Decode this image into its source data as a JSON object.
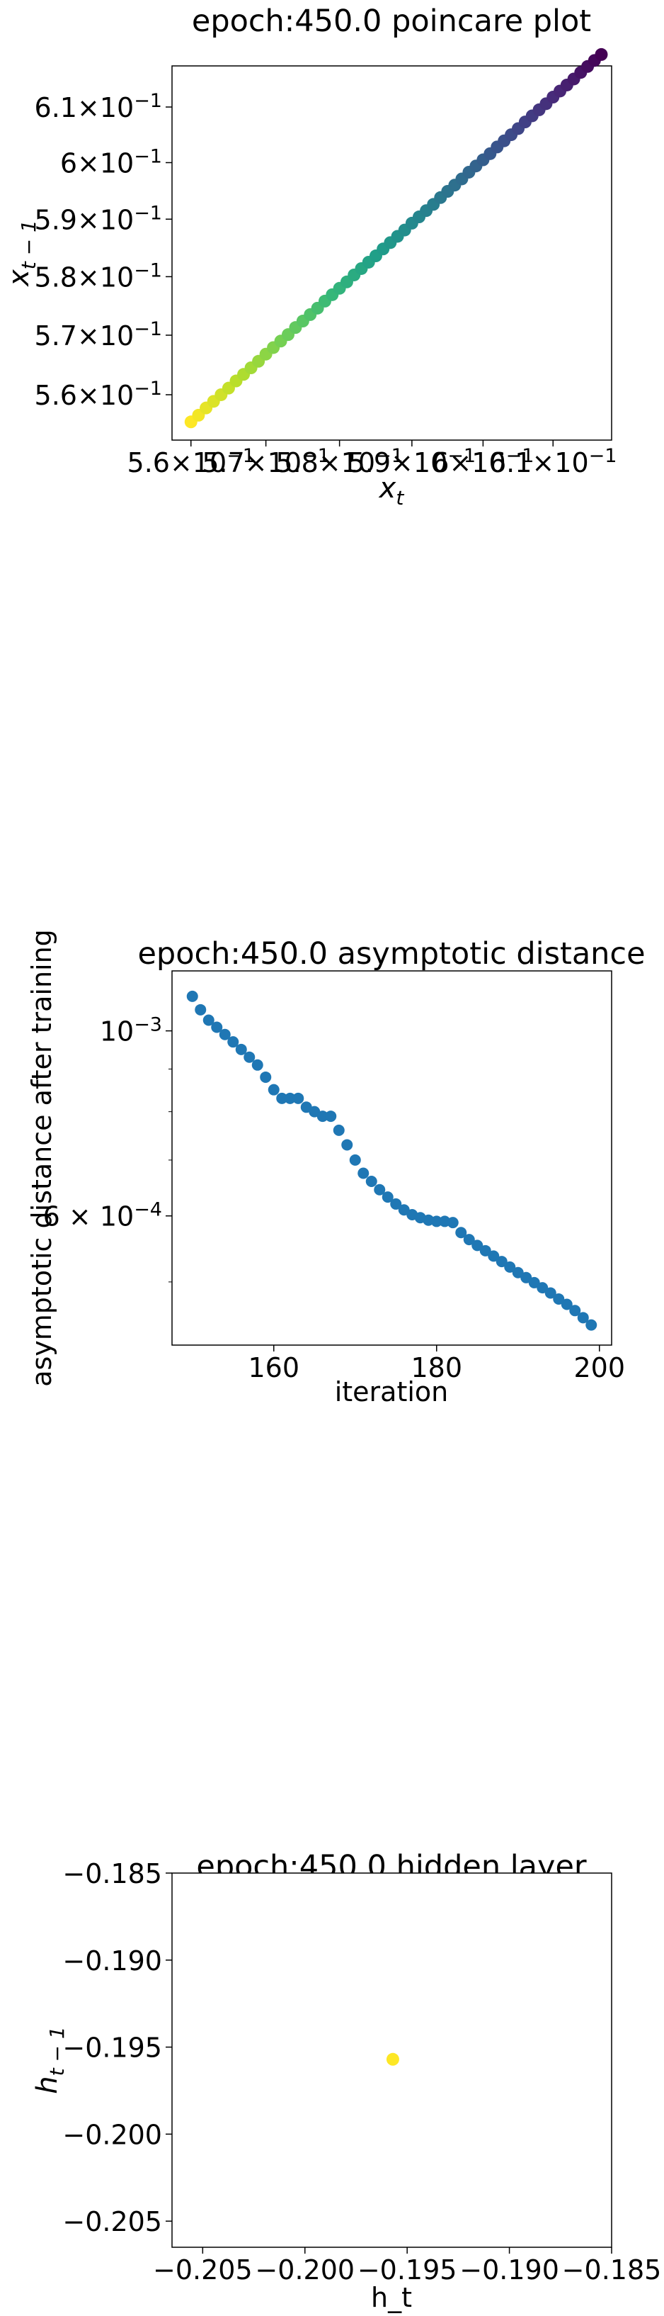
{
  "chart_data": [
    {
      "type": "scatter",
      "title": "epoch:450.0 poincare plot",
      "xlabel": "x_t",
      "ylabel": "x_{t-1}",
      "scale": "log",
      "xlim": [
        0.5575,
        0.6185
      ],
      "ylim": [
        0.5525,
        0.6175
      ],
      "xtick_labels": [
        {
          "value": 0.56,
          "mantissa": "5.6",
          "exp": "−1"
        },
        {
          "value": 0.57,
          "mantissa": "5.7",
          "exp": "−1"
        },
        {
          "value": 0.58,
          "mantissa": "5.8",
          "exp": "−1"
        },
        {
          "value": 0.59,
          "mantissa": "5.9",
          "exp": "−1"
        },
        {
          "value": 0.6,
          "mantissa": "6",
          "exp": "−1"
        },
        {
          "value": 0.61,
          "mantissa": "6.1",
          "exp": "−1"
        }
      ],
      "ytick_labels": [
        {
          "value": 0.56,
          "mantissa": "5.6",
          "exp": "−1"
        },
        {
          "value": 0.57,
          "mantissa": "5.7",
          "exp": "−1"
        },
        {
          "value": 0.58,
          "mantissa": "5.8",
          "exp": "−1"
        },
        {
          "value": 0.59,
          "mantissa": "5.9",
          "exp": "−1"
        },
        {
          "value": 0.6,
          "mantissa": "6",
          "exp": "−1"
        },
        {
          "value": 0.61,
          "mantissa": "6.1",
          "exp": "−1"
        }
      ],
      "colormap": "viridis",
      "points": [
        [
          0.56,
          0.5555
        ],
        [
          0.561,
          0.5566
        ],
        [
          0.562,
          0.5578
        ],
        [
          0.563,
          0.5589
        ],
        [
          0.564,
          0.56
        ],
        [
          0.565,
          0.5611
        ],
        [
          0.566,
          0.5623
        ],
        [
          0.567,
          0.5634
        ],
        [
          0.568,
          0.5645
        ],
        [
          0.569,
          0.5656
        ],
        [
          0.57,
          0.5668
        ],
        [
          0.571,
          0.5679
        ],
        [
          0.572,
          0.569
        ],
        [
          0.573,
          0.5701
        ],
        [
          0.574,
          0.5713
        ],
        [
          0.575,
          0.5724
        ],
        [
          0.576,
          0.5735
        ],
        [
          0.577,
          0.5746
        ],
        [
          0.578,
          0.5758
        ],
        [
          0.579,
          0.5769
        ],
        [
          0.58,
          0.578
        ],
        [
          0.581,
          0.5791
        ],
        [
          0.582,
          0.5803
        ],
        [
          0.583,
          0.5814
        ],
        [
          0.584,
          0.5825
        ],
        [
          0.585,
          0.5836
        ],
        [
          0.586,
          0.5848
        ],
        [
          0.587,
          0.5859
        ],
        [
          0.588,
          0.587
        ],
        [
          0.589,
          0.5881
        ],
        [
          0.59,
          0.5893
        ],
        [
          0.591,
          0.5904
        ],
        [
          0.592,
          0.5915
        ],
        [
          0.593,
          0.5926
        ],
        [
          0.594,
          0.5938
        ],
        [
          0.595,
          0.5949
        ],
        [
          0.596,
          0.596
        ],
        [
          0.597,
          0.5971
        ],
        [
          0.598,
          0.5983
        ],
        [
          0.599,
          0.5994
        ],
        [
          0.6,
          0.6005
        ],
        [
          0.601,
          0.6016
        ],
        [
          0.602,
          0.6028
        ],
        [
          0.603,
          0.6039
        ],
        [
          0.604,
          0.605
        ],
        [
          0.605,
          0.6061
        ],
        [
          0.606,
          0.6073
        ],
        [
          0.607,
          0.6084
        ],
        [
          0.608,
          0.6095
        ],
        [
          0.609,
          0.6106
        ],
        [
          0.61,
          0.6118
        ],
        [
          0.611,
          0.6129
        ],
        [
          0.612,
          0.614
        ],
        [
          0.613,
          0.6151
        ],
        [
          0.614,
          0.6163
        ],
        [
          0.615,
          0.6174
        ],
        [
          0.616,
          0.6185
        ],
        [
          0.617,
          0.6196
        ]
      ]
    },
    {
      "type": "scatter",
      "title": "epoch:450.0 asymptotic distance",
      "xlabel": "iteration",
      "ylabel": "asymptotic distance after training",
      "yscale": "log",
      "xlim": [
        147.5,
        201.5
      ],
      "ylim": [
        0.00042,
        0.00118
      ],
      "xticks": [
        160,
        180,
        200
      ],
      "ytick_labels": [
        {
          "value": 0.001,
          "base": "10",
          "exp": "−3"
        },
        {
          "value": 0.0006,
          "base": "6 × 10",
          "exp": "−4"
        }
      ],
      "color": "#1f77b4",
      "x": [
        150,
        151,
        152,
        153,
        154,
        155,
        156,
        157,
        158,
        159,
        160,
        161,
        162,
        163,
        164,
        165,
        166,
        167,
        168,
        169,
        170,
        171,
        172,
        173,
        174,
        175,
        176,
        177,
        178,
        179,
        180,
        181,
        182,
        183,
        184,
        185,
        186,
        187,
        188,
        189,
        190,
        191,
        192,
        193,
        194,
        195,
        196,
        197,
        198,
        199
      ],
      "y": [
        0.0011,
        0.00106,
        0.00103,
        0.00101,
        0.00099,
        0.00097,
        0.00095,
        0.00093,
        0.00091,
        0.00088,
        0.00085,
        0.00083,
        0.00083,
        0.00083,
        0.00081,
        0.0008,
        0.00079,
        0.00079,
        0.00076,
        0.00073,
        0.0007,
        0.000675,
        0.00066,
        0.000645,
        0.000632,
        0.00062,
        0.00061,
        0.000602,
        0.000597,
        0.000593,
        0.000591,
        0.000591,
        0.000589,
        0.000573,
        0.000562,
        0.000553,
        0.000545,
        0.000537,
        0.000529,
        0.000521,
        0.000513,
        0.000506,
        0.000499,
        0.000492,
        0.000485,
        0.000477,
        0.00047,
        0.000462,
        0.000453,
        0.000444
      ]
    },
    {
      "type": "scatter",
      "title": "epoch:450.0 hidden layer",
      "xlabel": "h_t",
      "ylabel": "h_{t-1}",
      "xlim": [
        -0.2065,
        -0.185
      ],
      "ylim": [
        -0.2065,
        -0.185
      ],
      "xticks": [
        -0.205,
        -0.2,
        -0.195,
        -0.19,
        -0.185
      ],
      "yticks": [
        -0.185,
        -0.19,
        -0.195,
        -0.2,
        -0.205
      ],
      "xtick_labels": [
        "−0.205",
        "−0.200",
        "−0.195",
        "−0.190",
        "−0.185"
      ],
      "ytick_labels": [
        "−0.185",
        "−0.190",
        "−0.195",
        "−0.200",
        "−0.205"
      ],
      "points": [
        [
          -0.1957,
          -0.1957
        ]
      ],
      "color": "#fde725"
    }
  ]
}
